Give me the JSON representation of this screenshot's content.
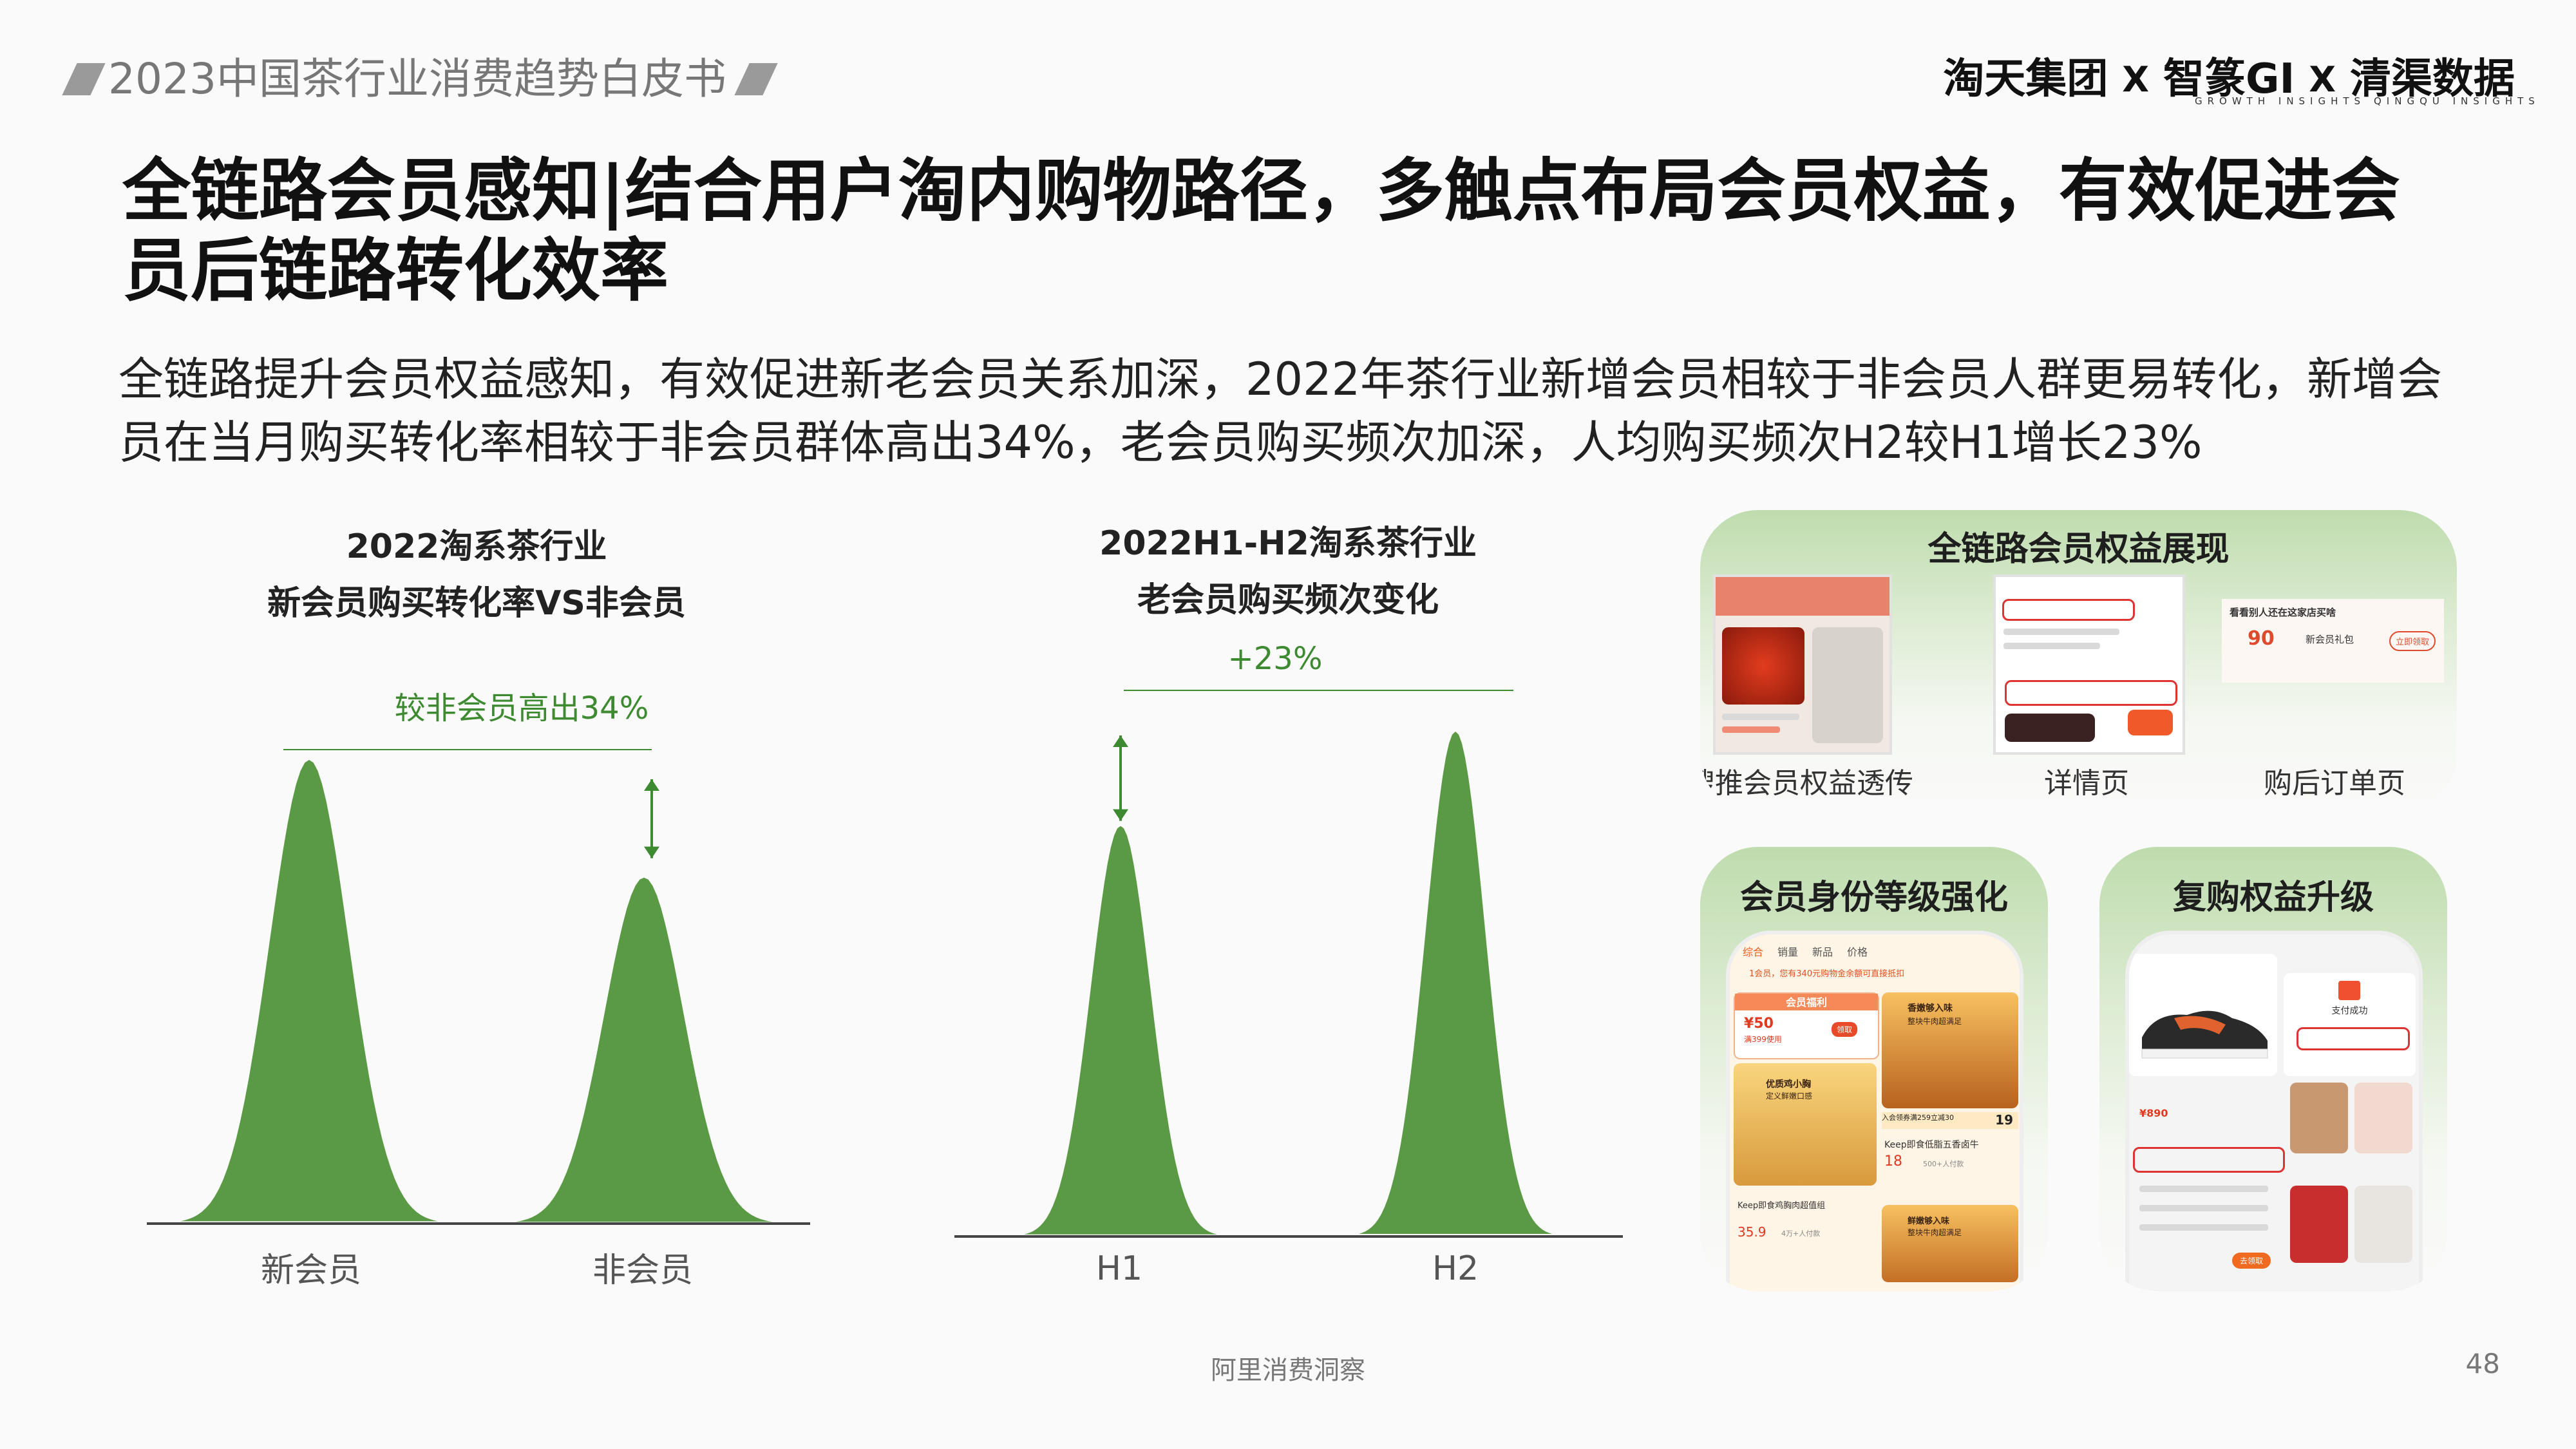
{
  "header": {
    "report_title": "2023中国茶行业消费趋势白皮书",
    "partners": [
      "淘天集团",
      "智篆GI",
      "清渠数据"
    ],
    "separator": "X",
    "partner_subtitles": [
      "GROWTH INSIGHTS",
      "QINGQU INSIGHTS"
    ]
  },
  "headline": "全链路会员感知|结合用户淘内购物路径，多触点布局会员权益，有效促进会员后链路转化效率",
  "summary": "全链路提升会员权益感知，有效促进新老会员关系加深，2022年茶行业新增会员相较于非会员人群更易转化，新增会员在当月购买转化率相较于非会员群体高出34%，老会员购买频次加深，人均购买频次H2较H1增长23%",
  "chart_data": [
    {
      "type": "bar",
      "title": "2022淘系茶行业\n新会员购买转化率VS非会员",
      "categories": [
        "新会员",
        "非会员"
      ],
      "values": [
        134,
        100
      ],
      "annotation": "较非会员高出34%",
      "color": "#5a9a45"
    },
    {
      "type": "bar",
      "title": "2022H1-H2淘系茶行业\n老会员购买频次变化",
      "categories": [
        "H1",
        "H2"
      ],
      "values": [
        100,
        123
      ],
      "annotation": "+23%",
      "color": "#5a9a45"
    }
  ],
  "panels": {
    "full_chain": {
      "title": "全链路会员权益展现",
      "labels": [
        "搜推会员权益透传",
        "详情页",
        "购后订单页"
      ],
      "order_page_text": {
        "heading": "看看别人还在这家店买啥",
        "price": "90",
        "gift": "新会员礼包",
        "button": "立即领取"
      }
    },
    "identity": {
      "title": "会员身份等级强化",
      "tabs": [
        "综合",
        "销量",
        "新品",
        "价格"
      ],
      "notice": "1会员，您有340元购物金余额可直接抵扣",
      "coupon_label": "会员福利",
      "coupon_value": "¥50",
      "coupon_condition": "满399使用",
      "coupon_button": "领取",
      "products": [
        {
          "name": "香嫩够入味",
          "sub": "整块牛肉超满足"
        },
        {
          "name": "优质鸡小胸",
          "sub": "定义鲜嫩口感"
        },
        {
          "name": "Keep即食低脂五香卤牛",
          "price": "18",
          "sold": "500+人付款"
        },
        {
          "name": "Keep即食鸡胸肉超值组",
          "price": "35.9",
          "sold": "4万+人付款"
        },
        {
          "name": "鲜嫩够入味",
          "sub": "整块牛肉超满足"
        }
      ],
      "promo_badge": "入会领券满259立减30",
      "promo_price": "19"
    },
    "repurchase": {
      "title": "复购权益升级",
      "success_text": "支付成功",
      "price": "¥890",
      "button": "去领取"
    }
  },
  "footer": {
    "source": "阿里消费洞察",
    "page": "48"
  }
}
